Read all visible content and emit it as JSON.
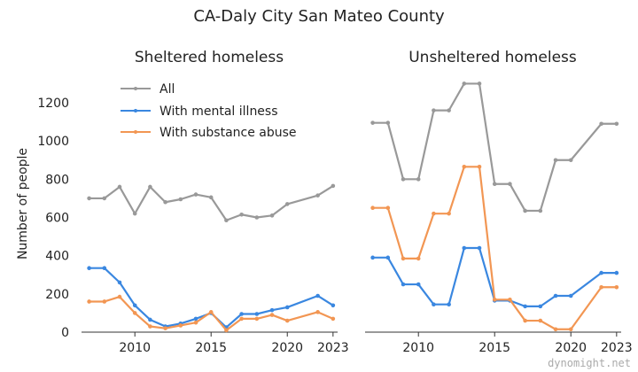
{
  "page": {
    "title": "CA-Daly City San Mateo County",
    "ylabel": "Number of people",
    "watermark": "dynomight.net"
  },
  "legend": {
    "items": [
      {
        "label": "All",
        "color": "#999999"
      },
      {
        "label": "With mental illness",
        "color": "#3a87e0"
      },
      {
        "label": "With substance abuse",
        "color": "#f29653"
      }
    ]
  },
  "chart_data": [
    {
      "type": "line",
      "title": "Sheltered homeless",
      "xlabel": "",
      "ylabel": "Number of people",
      "xlim": [
        2006.5,
        2023.3
      ],
      "ylim": [
        0,
        1300
      ],
      "x_ticks": [
        2010,
        2015,
        2020,
        2023
      ],
      "y_ticks": [
        0,
        200,
        400,
        600,
        800,
        1000,
        1200
      ],
      "grid": false,
      "legend_position": "top-left",
      "series": [
        {
          "name": "All",
          "color": "#999999",
          "points": [
            [
              2007,
              700
            ],
            [
              2008,
              700
            ],
            [
              2009,
              760
            ],
            [
              2010,
              620
            ],
            [
              2011,
              760
            ],
            [
              2012,
              680
            ],
            [
              2013,
              695
            ],
            [
              2014,
              720
            ],
            [
              2015,
              705
            ],
            [
              2016,
              585
            ],
            [
              2017,
              615
            ],
            [
              2018,
              600
            ],
            [
              2019,
              610
            ],
            [
              2020,
              670
            ],
            [
              2022,
              715
            ],
            [
              2023,
              765
            ]
          ]
        },
        {
          "name": "With mental illness",
          "color": "#3a87e0",
          "points": [
            [
              2007,
              335
            ],
            [
              2008,
              335
            ],
            [
              2009,
              260
            ],
            [
              2010,
              140
            ],
            [
              2011,
              65
            ],
            [
              2012,
              30
            ],
            [
              2013,
              45
            ],
            [
              2014,
              70
            ],
            [
              2015,
              100
            ],
            [
              2016,
              25
            ],
            [
              2017,
              95
            ],
            [
              2018,
              95
            ],
            [
              2019,
              115
            ],
            [
              2020,
              130
            ],
            [
              2022,
              190
            ],
            [
              2023,
              140
            ]
          ]
        },
        {
          "name": "With substance abuse",
          "color": "#f29653",
          "points": [
            [
              2007,
              160
            ],
            [
              2008,
              160
            ],
            [
              2009,
              185
            ],
            [
              2010,
              100
            ],
            [
              2011,
              30
            ],
            [
              2012,
              20
            ],
            [
              2013,
              35
            ],
            [
              2014,
              50
            ],
            [
              2015,
              105
            ],
            [
              2016,
              10
            ],
            [
              2017,
              70
            ],
            [
              2018,
              70
            ],
            [
              2019,
              90
            ],
            [
              2020,
              60
            ],
            [
              2022,
              105
            ],
            [
              2023,
              70
            ]
          ]
        }
      ]
    },
    {
      "type": "line",
      "title": "Unsheltered homeless",
      "xlabel": "",
      "ylabel": "",
      "xlim": [
        2006.5,
        2023.3
      ],
      "ylim": [
        0,
        1300
      ],
      "x_ticks": [
        2010,
        2015,
        2020,
        2023
      ],
      "y_ticks": [],
      "grid": false,
      "series": [
        {
          "name": "All",
          "color": "#999999",
          "points": [
            [
              2007,
              1095
            ],
            [
              2008,
              1095
            ],
            [
              2009,
              800
            ],
            [
              2010,
              800
            ],
            [
              2011,
              1160
            ],
            [
              2012,
              1160
            ],
            [
              2013,
              1300
            ],
            [
              2014,
              1300
            ],
            [
              2015,
              775
            ],
            [
              2016,
              775
            ],
            [
              2017,
              635
            ],
            [
              2018,
              635
            ],
            [
              2019,
              900
            ],
            [
              2020,
              900
            ],
            [
              2022,
              1090
            ],
            [
              2023,
              1090
            ]
          ]
        },
        {
          "name": "With mental illness",
          "color": "#3a87e0",
          "points": [
            [
              2007,
              390
            ],
            [
              2008,
              390
            ],
            [
              2009,
              250
            ],
            [
              2010,
              250
            ],
            [
              2011,
              145
            ],
            [
              2012,
              145
            ],
            [
              2013,
              440
            ],
            [
              2014,
              440
            ],
            [
              2015,
              165
            ],
            [
              2016,
              165
            ],
            [
              2017,
              135
            ],
            [
              2018,
              135
            ],
            [
              2019,
              190
            ],
            [
              2020,
              190
            ],
            [
              2022,
              310
            ],
            [
              2023,
              310
            ]
          ]
        },
        {
          "name": "With substance abuse",
          "color": "#f29653",
          "points": [
            [
              2007,
              650
            ],
            [
              2008,
              650
            ],
            [
              2009,
              385
            ],
            [
              2010,
              385
            ],
            [
              2011,
              620
            ],
            [
              2012,
              620
            ],
            [
              2013,
              865
            ],
            [
              2014,
              865
            ],
            [
              2015,
              170
            ],
            [
              2016,
              170
            ],
            [
              2017,
              60
            ],
            [
              2018,
              60
            ],
            [
              2019,
              15
            ],
            [
              2020,
              15
            ],
            [
              2022,
              235
            ],
            [
              2023,
              235
            ]
          ]
        }
      ]
    }
  ]
}
